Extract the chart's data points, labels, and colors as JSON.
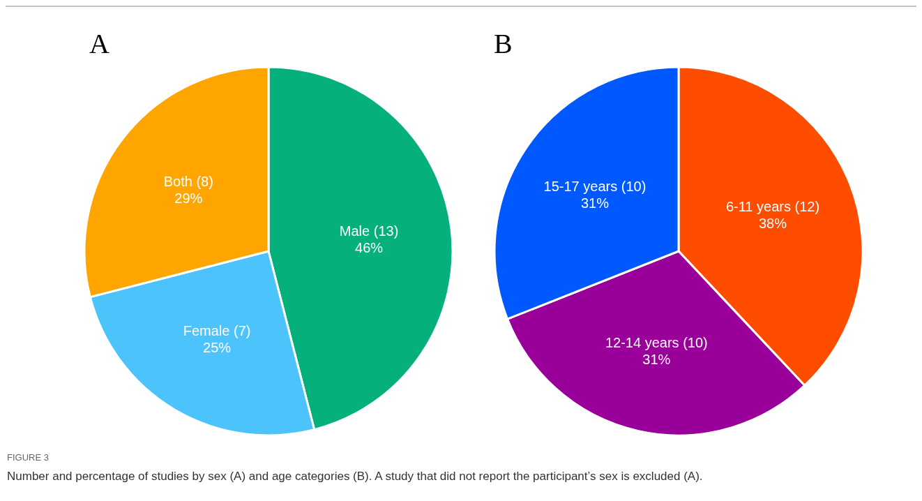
{
  "chart_data": [
    {
      "type": "pie",
      "title": "A",
      "categories": [
        "Male (13)",
        "Female (7)",
        "Both (8)"
      ],
      "values": [
        46,
        25,
        29
      ],
      "colors": [
        "#05b07c",
        "#4dc3fc",
        "#ffa500"
      ],
      "value_labels": [
        "46%",
        "25%",
        "29%"
      ]
    },
    {
      "type": "pie",
      "title": "B",
      "categories": [
        "6-11 years (12)",
        "12-14 years (10)",
        "15-17 years (10)"
      ],
      "values": [
        38,
        31,
        31
      ],
      "colors": [
        "#ff4d00",
        "#990099",
        "#0059ff"
      ],
      "value_labels": [
        "38%",
        "31%",
        "31%"
      ],
      "annotations": [
        "FIGURE 3",
        "Number and percentage of studies by sex (A) and age categories (B). A study that did not report the participant’s sex is excluded (A)."
      ]
    }
  ]
}
